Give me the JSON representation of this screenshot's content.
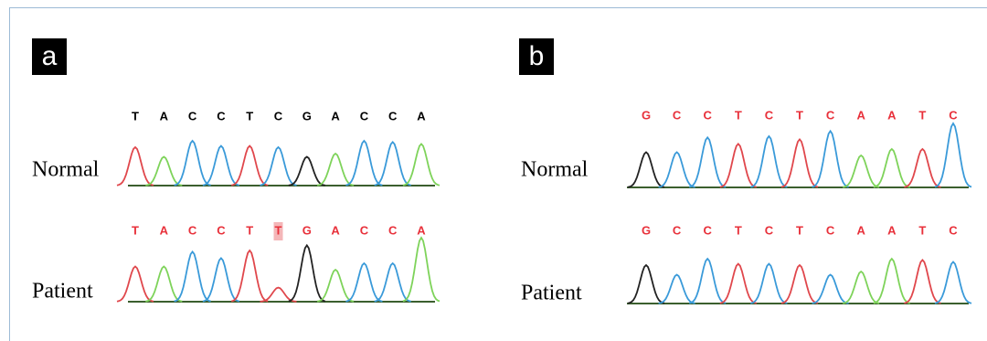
{
  "panels": [
    {
      "label": "a",
      "rows": [
        {
          "label": "Normal",
          "bases": [
            "T",
            "A",
            "C",
            "C",
            "T",
            "C",
            "G",
            "A",
            "C",
            "C",
            "A"
          ]
        },
        {
          "label": "Patient",
          "bases": [
            "T",
            "A",
            "C",
            "C",
            "T",
            "T",
            "G",
            "A",
            "C",
            "C",
            "A"
          ]
        }
      ]
    },
    {
      "label": "b",
      "rows": [
        {
          "label": "Normal",
          "bases": [
            "G",
            "C",
            "C",
            "T",
            "C",
            "T",
            "C",
            "A",
            "A",
            "T",
            "C"
          ]
        },
        {
          "label": "Patient",
          "bases": [
            "G",
            "C",
            "C",
            "T",
            "C",
            "T",
            "C",
            "A",
            "A",
            "T",
            "C"
          ]
        }
      ]
    }
  ]
}
